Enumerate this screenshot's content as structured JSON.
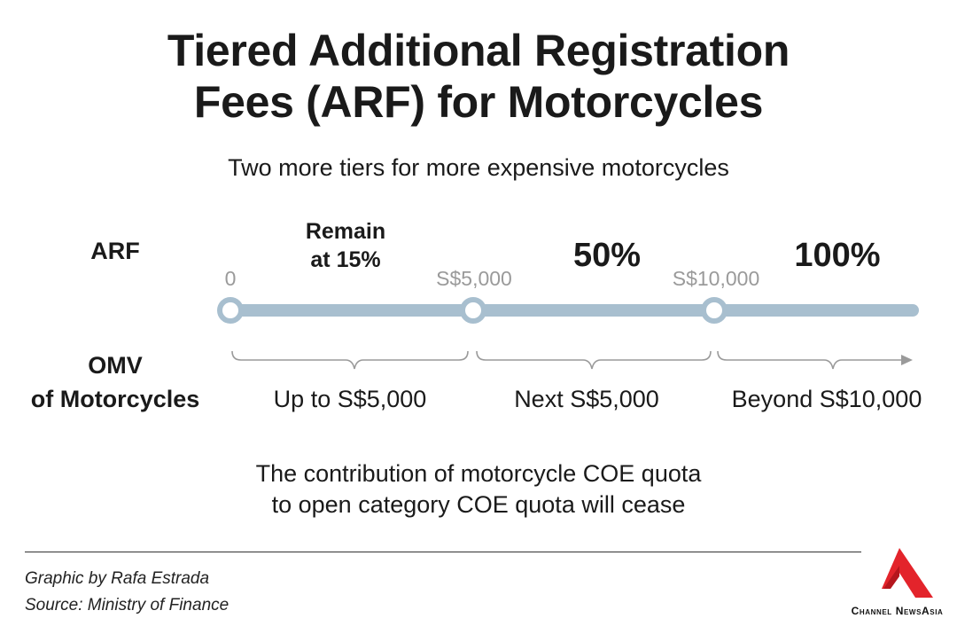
{
  "title_line1": "Tiered Additional Registration",
  "title_line2": "Fees (ARF) for Motorcycles",
  "subtitle": "Two more tiers for more expensive motorcycles",
  "rows": {
    "arf_label": "ARF",
    "omv_label_line1": "OMV",
    "omv_label_line2": "of Motorcycles"
  },
  "tiers": [
    {
      "rate_line1": "Remain",
      "rate_line2": "at 15%"
    },
    {
      "rate": "50%"
    },
    {
      "rate": "100%"
    }
  ],
  "thresholds": [
    "0",
    "S$5,000",
    "S$10,000"
  ],
  "ranges": [
    "Up to S$5,000",
    "Next S$5,000",
    "Beyond S$10,000"
  ],
  "note_line1": "The contribution of motorcycle COE quota",
  "note_line2": "to open category COE quota will cease",
  "credits": {
    "graphic": "Graphic by Rafa Estrada",
    "source": "Source: Ministry of Finance"
  },
  "brand": "Channel NewsAsia",
  "colors": {
    "timeline": "#a8bfcf",
    "brace": "#9a9a9a",
    "logo_red": "#e3242b"
  }
}
